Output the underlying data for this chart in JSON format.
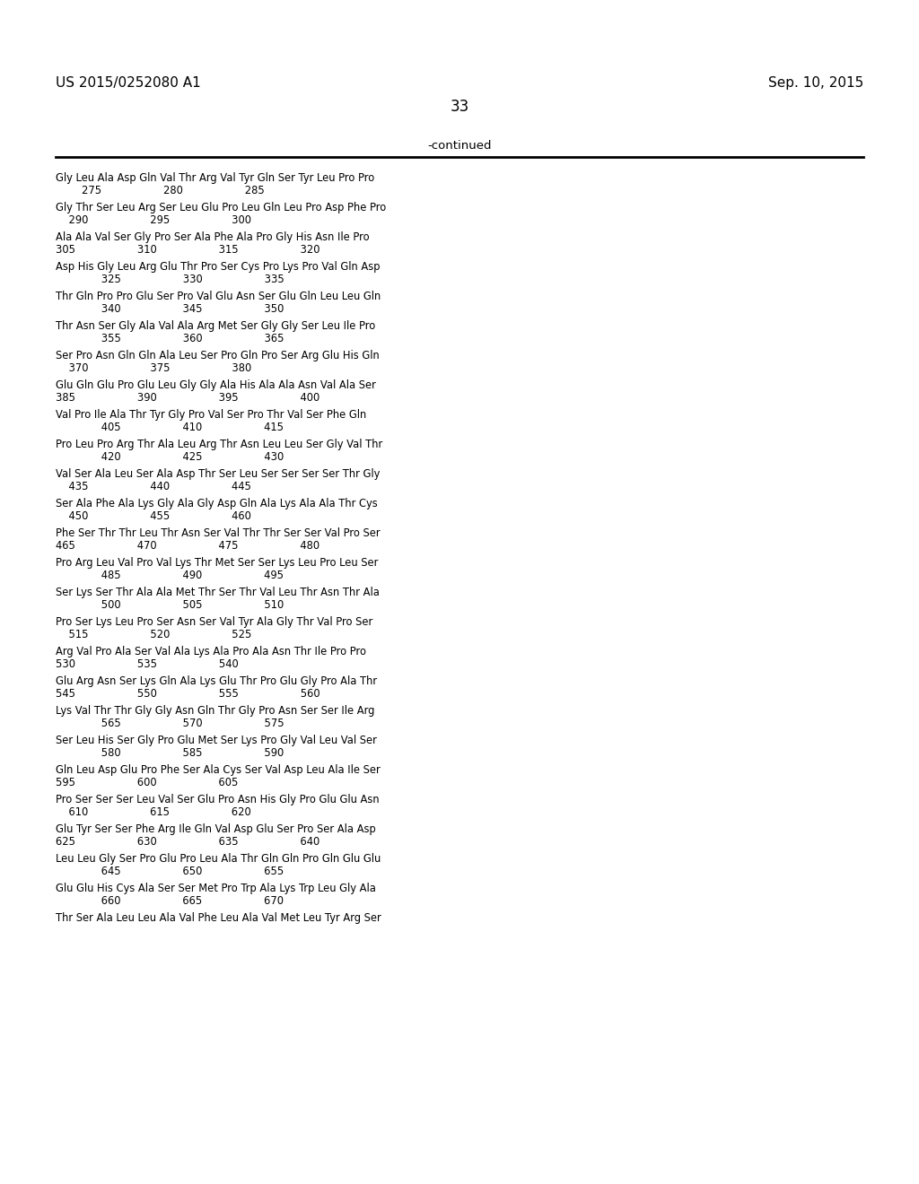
{
  "header_left": "US 2015/0252080 A1",
  "header_right": "Sep. 10, 2015",
  "page_number": "33",
  "continued_label": "-continued",
  "background_color": "#ffffff",
  "text_color": "#000000",
  "sequences": [
    [
      "Gly Leu Ala Asp Gln Val Thr Arg Val Tyr Gln Ser Tyr Leu Pro Pro",
      "        275                   280                   285"
    ],
    [
      "Gly Thr Ser Leu Arg Ser Leu Glu Pro Leu Gln Leu Pro Asp Phe Pro",
      "    290                   295                   300"
    ],
    [
      "Ala Ala Val Ser Gly Pro Ser Ala Phe Ala Pro Gly His Asn Ile Pro",
      "305                   310                   315                   320"
    ],
    [
      "Asp His Gly Leu Arg Glu Thr Pro Ser Cys Pro Lys Pro Val Gln Asp",
      "              325                   330                   335"
    ],
    [
      "Thr Gln Pro Pro Glu Ser Pro Val Glu Asn Ser Glu Gln Leu Leu Gln",
      "              340                   345                   350"
    ],
    [
      "Thr Asn Ser Gly Ala Val Ala Arg Met Ser Gly Gly Ser Leu Ile Pro",
      "              355                   360                   365"
    ],
    [
      "Ser Pro Asn Gln Gln Ala Leu Ser Pro Gln Pro Ser Arg Glu His Gln",
      "    370                   375                   380"
    ],
    [
      "Glu Gln Glu Pro Glu Leu Gly Gly Ala His Ala Ala Asn Val Ala Ser",
      "385                   390                   395                   400"
    ],
    [
      "Val Pro Ile Ala Thr Tyr Gly Pro Val Ser Pro Thr Val Ser Phe Gln",
      "              405                   410                   415"
    ],
    [
      "Pro Leu Pro Arg Thr Ala Leu Arg Thr Asn Leu Leu Ser Gly Val Thr",
      "              420                   425                   430"
    ],
    [
      "Val Ser Ala Leu Ser Ala Asp Thr Ser Leu Ser Ser Ser Ser Thr Gly",
      "    435                   440                   445"
    ],
    [
      "Ser Ala Phe Ala Lys Gly Ala Gly Asp Gln Ala Lys Ala Ala Thr Cys",
      "    450                   455                   460"
    ],
    [
      "Phe Ser Thr Thr Leu Thr Asn Ser Val Thr Thr Ser Ser Val Pro Ser",
      "465                   470                   475                   480"
    ],
    [
      "Pro Arg Leu Val Pro Val Lys Thr Met Ser Ser Lys Leu Pro Leu Ser",
      "              485                   490                   495"
    ],
    [
      "Ser Lys Ser Thr Ala Ala Met Thr Ser Thr Val Leu Thr Asn Thr Ala",
      "              500                   505                   510"
    ],
    [
      "Pro Ser Lys Leu Pro Ser Asn Ser Val Tyr Ala Gly Thr Val Pro Ser",
      "    515                   520                   525"
    ],
    [
      "Arg Val Pro Ala Ser Val Ala Lys Ala Pro Ala Asn Thr Ile Pro Pro",
      "530                   535                   540"
    ],
    [
      "Glu Arg Asn Ser Lys Gln Ala Lys Glu Thr Pro Glu Gly Pro Ala Thr",
      "545                   550                   555                   560"
    ],
    [
      "Lys Val Thr Thr Gly Gly Asn Gln Thr Gly Pro Asn Ser Ser Ile Arg",
      "              565                   570                   575"
    ],
    [
      "Ser Leu His Ser Gly Pro Glu Met Ser Lys Pro Gly Val Leu Val Ser",
      "              580                   585                   590"
    ],
    [
      "Gln Leu Asp Glu Pro Phe Ser Ala Cys Ser Val Asp Leu Ala Ile Ser",
      "595                   600                   605"
    ],
    [
      "Pro Ser Ser Ser Leu Val Ser Glu Pro Asn His Gly Pro Glu Glu Asn",
      "    610                   615                   620"
    ],
    [
      "Glu Tyr Ser Ser Phe Arg Ile Gln Val Asp Glu Ser Pro Ser Ala Asp",
      "625                   630                   635                   640"
    ],
    [
      "Leu Leu Gly Ser Pro Glu Pro Leu Ala Thr Gln Gln Pro Gln Glu Glu",
      "              645                   650                   655"
    ],
    [
      "Glu Glu His Cys Ala Ser Ser Met Pro Trp Ala Lys Trp Leu Gly Ala",
      "              660                   665                   670"
    ],
    [
      "Thr Ser Ala Leu Leu Ala Val Phe Leu Ala Val Met Leu Tyr Arg Ser",
      ""
    ]
  ]
}
